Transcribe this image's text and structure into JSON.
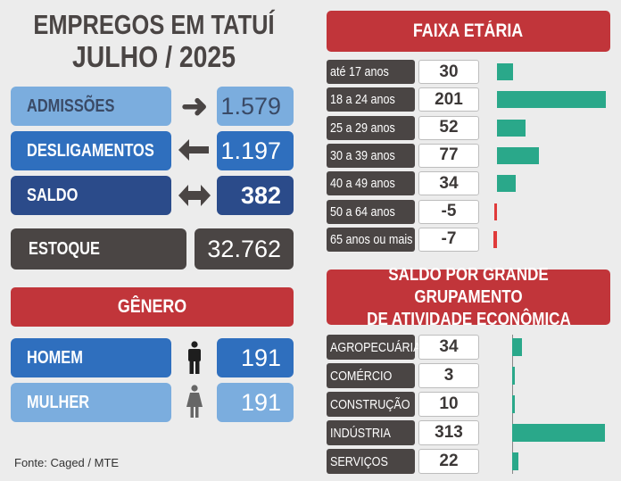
{
  "header": {
    "line1": "EMPREGOS EM TATUÍ",
    "line2": "JULHO / 2025"
  },
  "summary": {
    "admissoes": {
      "label": "ADMISSÕES",
      "value": "1.579"
    },
    "desligamentos": {
      "label": "DESLIGAMENTOS",
      "value": "1.197"
    },
    "saldo": {
      "label": "SALDO",
      "value": "382"
    },
    "estoque": {
      "label": "ESTOQUE",
      "value": "32.762"
    }
  },
  "genero": {
    "title": "GÊNERO",
    "homem": {
      "label": "HOMEM",
      "value": "191"
    },
    "mulher": {
      "label": "MULHER",
      "value": "191"
    }
  },
  "faixa": {
    "title": "FAIXA ETÁRIA"
  },
  "atividade": {
    "title_line1": "SALDO POR GRANDE GRUPAMENTO",
    "title_line2": "DE ATIVIDADE ECONÔMICA"
  },
  "footer": "Fonte: Caged / MTE",
  "colors": {
    "positive_bar": "#2aa88a",
    "negative_bar": "#e03a3a",
    "header_red": "#c1353a"
  },
  "chart_data": [
    {
      "type": "bar",
      "title": "FAIXA ETÁRIA",
      "categories": [
        "até 17 anos",
        "18 a 24 anos",
        "25 a 29 anos",
        "30 a 39 anos",
        "40 a 49 anos",
        "50 a 64 anos",
        "65 anos ou mais"
      ],
      "values": [
        30,
        201,
        52,
        77,
        34,
        -5,
        -7
      ],
      "value_labels": [
        "30",
        "201",
        "52",
        "77",
        "34",
        "-5",
        "-7"
      ]
    },
    {
      "type": "bar",
      "title": "SALDO POR GRANDE GRUPAMENTO DE ATIVIDADE ECONÔMICA",
      "categories": [
        "AGROPECUÁRIA",
        "COMÉRCIO",
        "CONSTRUÇÃO",
        "INDÚSTRIA",
        "SERVIÇOS"
      ],
      "values": [
        34,
        3,
        10,
        313,
        22
      ],
      "value_labels": [
        "34",
        "3",
        "10",
        "313",
        "22"
      ]
    }
  ]
}
